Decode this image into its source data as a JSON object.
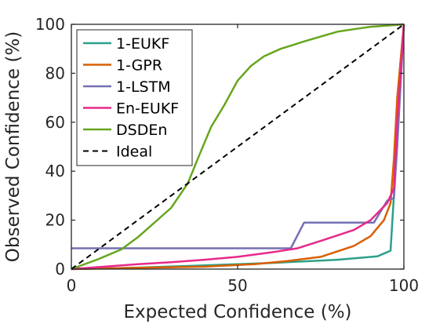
{
  "chart_data": {
    "type": "line",
    "title": "",
    "xlabel": "Expected Confidence (%)",
    "ylabel": "Observed Confidence (%)",
    "xlim": [
      0,
      100
    ],
    "ylim": [
      0,
      100
    ],
    "xticks": [
      0,
      50,
      100
    ],
    "yticks": [
      0,
      20,
      40,
      60,
      80,
      100
    ],
    "grid": false,
    "legend_position": "top-left",
    "series": [
      {
        "name": "1-EUKF",
        "color": "#2ca089",
        "dash": "solid",
        "points": [
          [
            0,
            0
          ],
          [
            20,
            0.6
          ],
          [
            40,
            1.5
          ],
          [
            60,
            2.5
          ],
          [
            80,
            3.8
          ],
          [
            92,
            5.2
          ],
          [
            96,
            7.5
          ],
          [
            97,
            30
          ],
          [
            98,
            65
          ],
          [
            99,
            85
          ],
          [
            100,
            100
          ]
        ]
      },
      {
        "name": "1-GPR",
        "color": "#d95f02",
        "dash": "solid",
        "points": [
          [
            0,
            0
          ],
          [
            20,
            0.5
          ],
          [
            40,
            1.0
          ],
          [
            55,
            2.0
          ],
          [
            65,
            3.3
          ],
          [
            75,
            5.0
          ],
          [
            85,
            9.5
          ],
          [
            90,
            13.5
          ],
          [
            94,
            20
          ],
          [
            96,
            27
          ],
          [
            97,
            45
          ],
          [
            98,
            70
          ],
          [
            100,
            100
          ]
        ]
      },
      {
        "name": "1-LSTM",
        "color": "#7570b3",
        "dash": "solid",
        "points": [
          [
            0,
            8.5
          ],
          [
            20,
            8.5
          ],
          [
            40,
            8.5
          ],
          [
            66,
            8.5
          ],
          [
            70,
            19
          ],
          [
            80,
            19
          ],
          [
            91,
            19
          ],
          [
            95,
            28
          ],
          [
            97,
            29
          ],
          [
            98,
            50
          ],
          [
            100,
            100
          ]
        ]
      },
      {
        "name": "En-EUKF",
        "color": "#e7298a",
        "dash": "solid",
        "points": [
          [
            0,
            0
          ],
          [
            10,
            1
          ],
          [
            20,
            2
          ],
          [
            30,
            2.8
          ],
          [
            40,
            3.8
          ],
          [
            50,
            5
          ],
          [
            60,
            6.8
          ],
          [
            68,
            8.5
          ],
          [
            75,
            11.5
          ],
          [
            85,
            16
          ],
          [
            90,
            20
          ],
          [
            95,
            27
          ],
          [
            97,
            33
          ],
          [
            98,
            60
          ],
          [
            100,
            100
          ]
        ]
      },
      {
        "name": "DSDEn",
        "color": "#66a61e",
        "dash": "solid",
        "points": [
          [
            0,
            0
          ],
          [
            8,
            4
          ],
          [
            15,
            8
          ],
          [
            20,
            13
          ],
          [
            25,
            19
          ],
          [
            30,
            25
          ],
          [
            35,
            35
          ],
          [
            38,
            45
          ],
          [
            42,
            58
          ],
          [
            46,
            67
          ],
          [
            50,
            77
          ],
          [
            54,
            83
          ],
          [
            58,
            87
          ],
          [
            63,
            90
          ],
          [
            70,
            93
          ],
          [
            75,
            95
          ],
          [
            80,
            97
          ],
          [
            85,
            98
          ],
          [
            90,
            99
          ],
          [
            95,
            99.5
          ],
          [
            100,
            100
          ]
        ]
      },
      {
        "name": "Ideal",
        "color": "#000000",
        "dash": "dashed",
        "points": [
          [
            0,
            0
          ],
          [
            100,
            100
          ]
        ]
      }
    ]
  }
}
